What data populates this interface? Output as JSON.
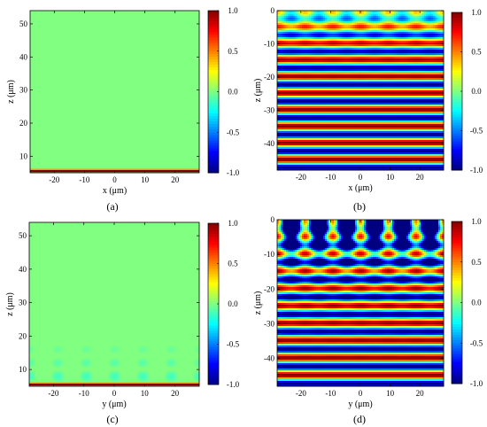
{
  "chart_data": [
    {
      "type": "heatmap",
      "caption": "(a)",
      "xlabel": "x (μm)",
      "ylabel": "z (μm)",
      "xlim": [
        -28,
        28
      ],
      "ylim": [
        5,
        54
      ],
      "xticks": [
        -20,
        -10,
        0,
        10,
        20
      ],
      "yticks": [
        10,
        20,
        30,
        40,
        50
      ],
      "xtick_labels": [
        "-20",
        "-10",
        "0",
        "10",
        "20"
      ],
      "ytick_labels": [
        "10",
        "20",
        "30",
        "40",
        "50"
      ],
      "field": "uniform",
      "base_value": 0,
      "edge": {
        "z": 5.5,
        "value": 1,
        "thickness": 1.0,
        "period": 6
      },
      "colorbar": {
        "ticks": [
          1.0,
          0.5,
          0.0,
          -0.5,
          -1.0
        ],
        "labels": [
          "1.0",
          "0.5",
          "0.0",
          "-0.5",
          "-1.0"
        ]
      }
    },
    {
      "type": "heatmap",
      "caption": "(b)",
      "xlabel": "x (μm)",
      "ylabel": "z (μm)",
      "xlim": [
        -28,
        28
      ],
      "ylim": [
        -48,
        0
      ],
      "xticks": [
        -20,
        -10,
        0,
        10,
        20
      ],
      "yticks": [
        0,
        -10,
        -20,
        -30,
        -40
      ],
      "xtick_labels": [
        "-20",
        "-10",
        "0",
        "10",
        "20"
      ],
      "ytick_labels": [
        "0",
        "-10",
        "-20",
        "-30",
        "-40"
      ],
      "field": "standing",
      "z_period": 5.0,
      "phase_z": -9.8,
      "x_period": 9.33,
      "near_depth": 5.5,
      "near_amp": 0.35,
      "near_shift": 0.0,
      "colorbar": {
        "ticks": [
          1.0,
          0.5,
          0.0,
          -0.5,
          -1.0
        ],
        "labels": [
          "1.0",
          "0.5",
          "0.0",
          "-0.5",
          "-1.0"
        ]
      }
    },
    {
      "type": "heatmap",
      "caption": "(c)",
      "xlabel": "y (μm)",
      "ylabel": "z (μm)",
      "xlim": [
        -28,
        28
      ],
      "ylim": [
        5,
        54
      ],
      "xticks": [
        -20,
        -10,
        0,
        10,
        20
      ],
      "yticks": [
        10,
        20,
        30,
        40,
        50
      ],
      "xtick_labels": [
        "-20",
        "-10",
        "0",
        "10",
        "20"
      ],
      "ytick_labels": [
        "10",
        "20",
        "30",
        "40",
        "50"
      ],
      "field": "blobs",
      "base_value": 0,
      "blob_period": 9.33,
      "blob_rows": [
        {
          "z": 8.0,
          "rx": 2.2,
          "rz": 1.8,
          "value": -0.12
        },
        {
          "z": 12.0,
          "rx": 2.0,
          "rz": 1.5,
          "value": -0.08
        },
        {
          "z": 16.0,
          "rx": 1.8,
          "rz": 1.2,
          "value": -0.05
        }
      ],
      "edge": {
        "z": 5.5,
        "value": 1,
        "thickness": 1.0,
        "period": 6
      },
      "colorbar": {
        "ticks": [
          1.0,
          0.5,
          0.0,
          -0.5,
          -1.0
        ],
        "labels": [
          "1.0",
          "0.5",
          "0.0",
          "-0.5",
          "-1.0"
        ]
      }
    },
    {
      "type": "heatmap",
      "caption": "(d)",
      "xlabel": "y (μm)",
      "ylabel": "z (μm)",
      "xlim": [
        -28,
        28
      ],
      "ylim": [
        -48,
        0
      ],
      "xticks": [
        -20,
        -10,
        0,
        10,
        20
      ],
      "yticks": [
        0,
        -10,
        -20,
        -30,
        -40
      ],
      "xtick_labels": [
        "-20",
        "-10",
        "0",
        "10",
        "20"
      ],
      "ytick_labels": [
        "0",
        "-10",
        "-20",
        "-30",
        "-40"
      ],
      "field": "standing",
      "z_period": 5.0,
      "phase_z": -9.8,
      "x_period": 9.33,
      "near_depth": 7.0,
      "near_amp": 2.0,
      "near_shift": -0.75,
      "colorbar": {
        "ticks": [
          1.0,
          0.5,
          0.0,
          -0.5,
          -1.0
        ],
        "labels": [
          "1.0",
          "0.5",
          "0.0",
          "-0.5",
          "-1.0"
        ]
      }
    }
  ]
}
